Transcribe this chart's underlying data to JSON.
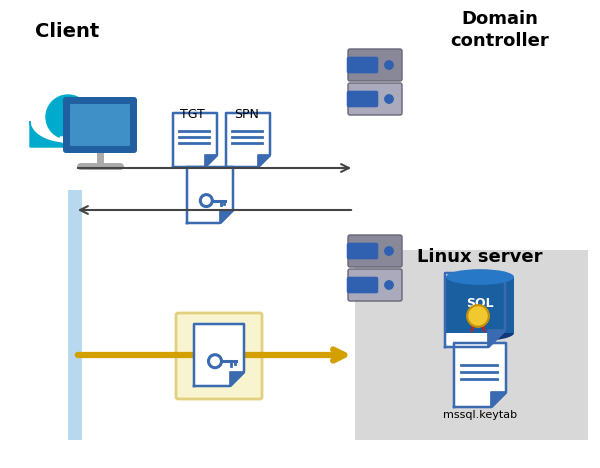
{
  "bg_color": "#ffffff",
  "client_label": "Client",
  "domain_label": "Domain\ncontroller",
  "linux_label": "Linux server",
  "mssql_label": "mssql.keytab",
  "tgt_label": "TGT",
  "spn_label": "SPN",
  "client_line_color": "#b8d8f0",
  "arrow_color_black": "#444444",
  "arrow_color_gold": "#d4a000",
  "doc_color": "#3a6ab0",
  "doc_color_light": "#5080c0",
  "highlight_bg": "#f8f4d0",
  "highlight_border": "#e0d080",
  "server_box_color": "#d8d8d8",
  "server_color_dark": "#888898",
  "server_color_light": "#aaaabc",
  "server_dot_color": "#3060b0",
  "person_color": "#00aacc",
  "monitor_color": "#2060a0",
  "monitor_light": "#4090c8",
  "stand_color": "#aaaaaa",
  "sql_color": "#1a5fa0",
  "sql_top": "#2878c8",
  "sql_bot": "#103878"
}
